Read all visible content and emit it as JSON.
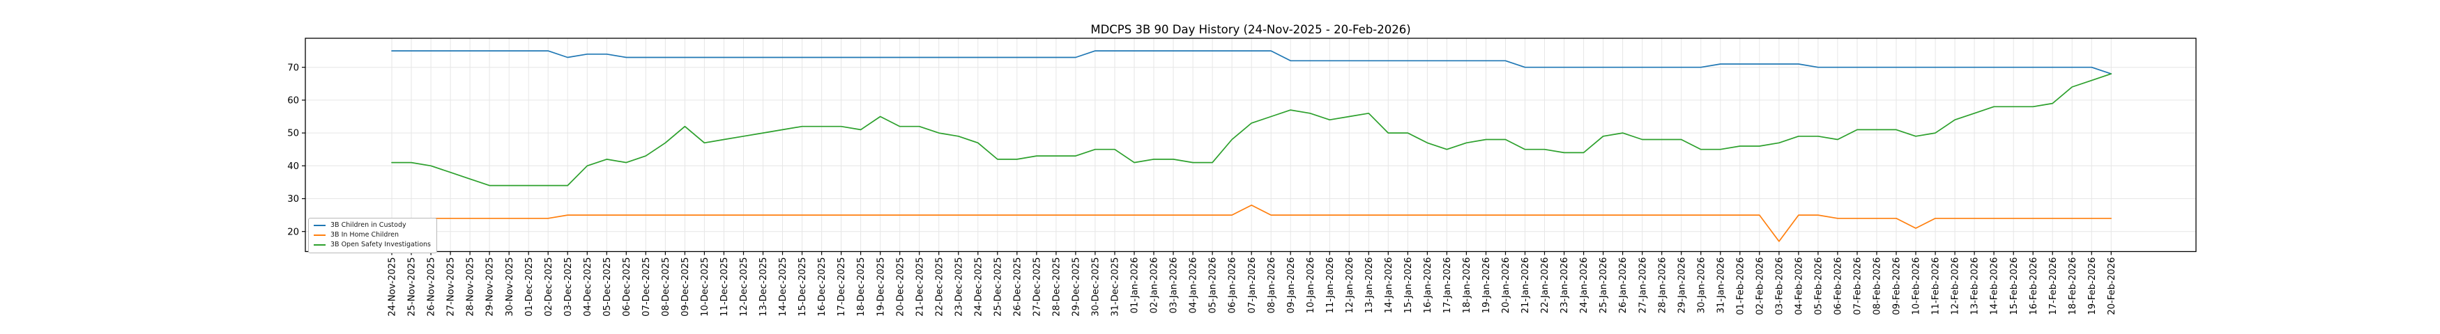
{
  "chart_data": {
    "type": "line",
    "title": "MDCPS 3B 90 Day History (24-Nov-2025 - 20-Feb-2026)",
    "xlabel": "",
    "ylabel": "",
    "yticks": [
      20,
      30,
      40,
      50,
      60,
      70
    ],
    "ylim": [
      14,
      78.8
    ],
    "grid": true,
    "grid_color": "#e6e6e6",
    "legend_position": "lower left",
    "x_tick_labels": [
      "24-Nov-2025",
      "25-Nov-2025",
      "26-Nov-2025",
      "27-Nov-2025",
      "28-Nov-2025",
      "29-Nov-2025",
      "30-Nov-2025",
      "01-Dec-2025",
      "02-Dec-2025",
      "03-Dec-2025",
      "04-Dec-2025",
      "05-Dec-2025",
      "06-Dec-2025",
      "07-Dec-2025",
      "08-Dec-2025",
      "09-Dec-2025",
      "10-Dec-2025",
      "11-Dec-2025",
      "12-Dec-2025",
      "13-Dec-2025",
      "14-Dec-2025",
      "15-Dec-2025",
      "16-Dec-2025",
      "17-Dec-2025",
      "18-Dec-2025",
      "19-Dec-2025",
      "20-Dec-2025",
      "21-Dec-2025",
      "22-Dec-2025",
      "23-Dec-2025",
      "24-Dec-2025",
      "25-Dec-2025",
      "26-Dec-2025",
      "27-Dec-2025",
      "28-Dec-2025",
      "29-Dec-2025",
      "30-Dec-2025",
      "31-Dec-2025",
      "01-Jan-2026",
      "02-Jan-2026",
      "03-Jan-2026",
      "04-Jan-2026",
      "05-Jan-2026",
      "06-Jan-2026",
      "07-Jan-2026",
      "08-Jan-2026",
      "09-Jan-2026",
      "10-Jan-2026",
      "11-Jan-2026",
      "12-Jan-2026",
      "13-Jan-2026",
      "14-Jan-2026",
      "15-Jan-2026",
      "16-Jan-2026",
      "17-Jan-2026",
      "18-Jan-2026",
      "19-Jan-2026",
      "20-Jan-2026",
      "21-Jan-2026",
      "22-Jan-2026",
      "23-Jan-2026",
      "24-Jan-2026",
      "25-Jan-2026",
      "26-Jan-2026",
      "27-Jan-2026",
      "28-Jan-2026",
      "29-Jan-2026",
      "30-Jan-2026",
      "31-Jan-2026",
      "01-Feb-2026",
      "02-Feb-2026",
      "03-Feb-2026",
      "04-Feb-2026",
      "05-Feb-2026",
      "06-Feb-2026",
      "07-Feb-2026",
      "08-Feb-2026",
      "09-Feb-2026",
      "10-Feb-2026",
      "11-Feb-2026",
      "12-Feb-2026",
      "13-Feb-2026",
      "14-Feb-2026",
      "15-Feb-2026",
      "16-Feb-2026",
      "17-Feb-2026",
      "18-Feb-2026",
      "19-Feb-2026",
      "20-Feb-2026"
    ],
    "series": [
      {
        "name": "3B Children in Custody",
        "color": "#1f77b4",
        "values": [
          75,
          75,
          75,
          75,
          75,
          75,
          75,
          75,
          75,
          73,
          74,
          74,
          73,
          73,
          73,
          73,
          73,
          73,
          73,
          73,
          73,
          73,
          73,
          73,
          73,
          73,
          73,
          73,
          73,
          73,
          73,
          73,
          73,
          73,
          73,
          73,
          75,
          75,
          75,
          75,
          75,
          75,
          75,
          75,
          75,
          75,
          72,
          72,
          72,
          72,
          72,
          72,
          72,
          72,
          72,
          72,
          72,
          72,
          70,
          70,
          70,
          70,
          70,
          70,
          70,
          70,
          70,
          70,
          71,
          71,
          71,
          71,
          71,
          70,
          70,
          70,
          70,
          70,
          70,
          70,
          70,
          70,
          70,
          70,
          70,
          70,
          70,
          70,
          68
        ]
      },
      {
        "name": "3B In Home Children",
        "color": "#ff7f0e",
        "values": [
          24,
          24,
          24,
          24,
          24,
          24,
          24,
          24,
          24,
          25,
          25,
          25,
          25,
          25,
          25,
          25,
          25,
          25,
          25,
          25,
          25,
          25,
          25,
          25,
          25,
          25,
          25,
          25,
          25,
          25,
          25,
          25,
          25,
          25,
          25,
          25,
          25,
          25,
          25,
          25,
          25,
          25,
          25,
          25,
          28,
          25,
          25,
          25,
          25,
          25,
          25,
          25,
          25,
          25,
          25,
          25,
          25,
          25,
          25,
          25,
          25,
          25,
          25,
          25,
          25,
          25,
          25,
          25,
          25,
          25,
          25,
          17,
          25,
          25,
          24,
          24,
          24,
          24,
          21,
          24,
          24,
          24,
          24,
          24,
          24,
          24,
          24,
          24,
          24
        ]
      },
      {
        "name": "3B Open Safety Investigations",
        "color": "#2ca02c",
        "values": [
          41,
          41,
          40,
          38,
          36,
          34,
          34,
          34,
          34,
          34,
          40,
          42,
          41,
          43,
          47,
          52,
          47,
          48,
          49,
          50,
          51,
          52,
          52,
          52,
          51,
          55,
          52,
          52,
          50,
          49,
          47,
          42,
          42,
          43,
          43,
          43,
          45,
          45,
          41,
          42,
          42,
          41,
          41,
          48,
          53,
          55,
          57,
          56,
          54,
          55,
          56,
          50,
          50,
          47,
          45,
          47,
          48,
          48,
          45,
          45,
          44,
          44,
          49,
          50,
          48,
          48,
          48,
          45,
          45,
          46,
          46,
          47,
          49,
          49,
          48,
          51,
          51,
          51,
          49,
          50,
          54,
          56,
          58,
          58,
          58,
          59,
          64,
          66,
          68
        ]
      }
    ]
  }
}
